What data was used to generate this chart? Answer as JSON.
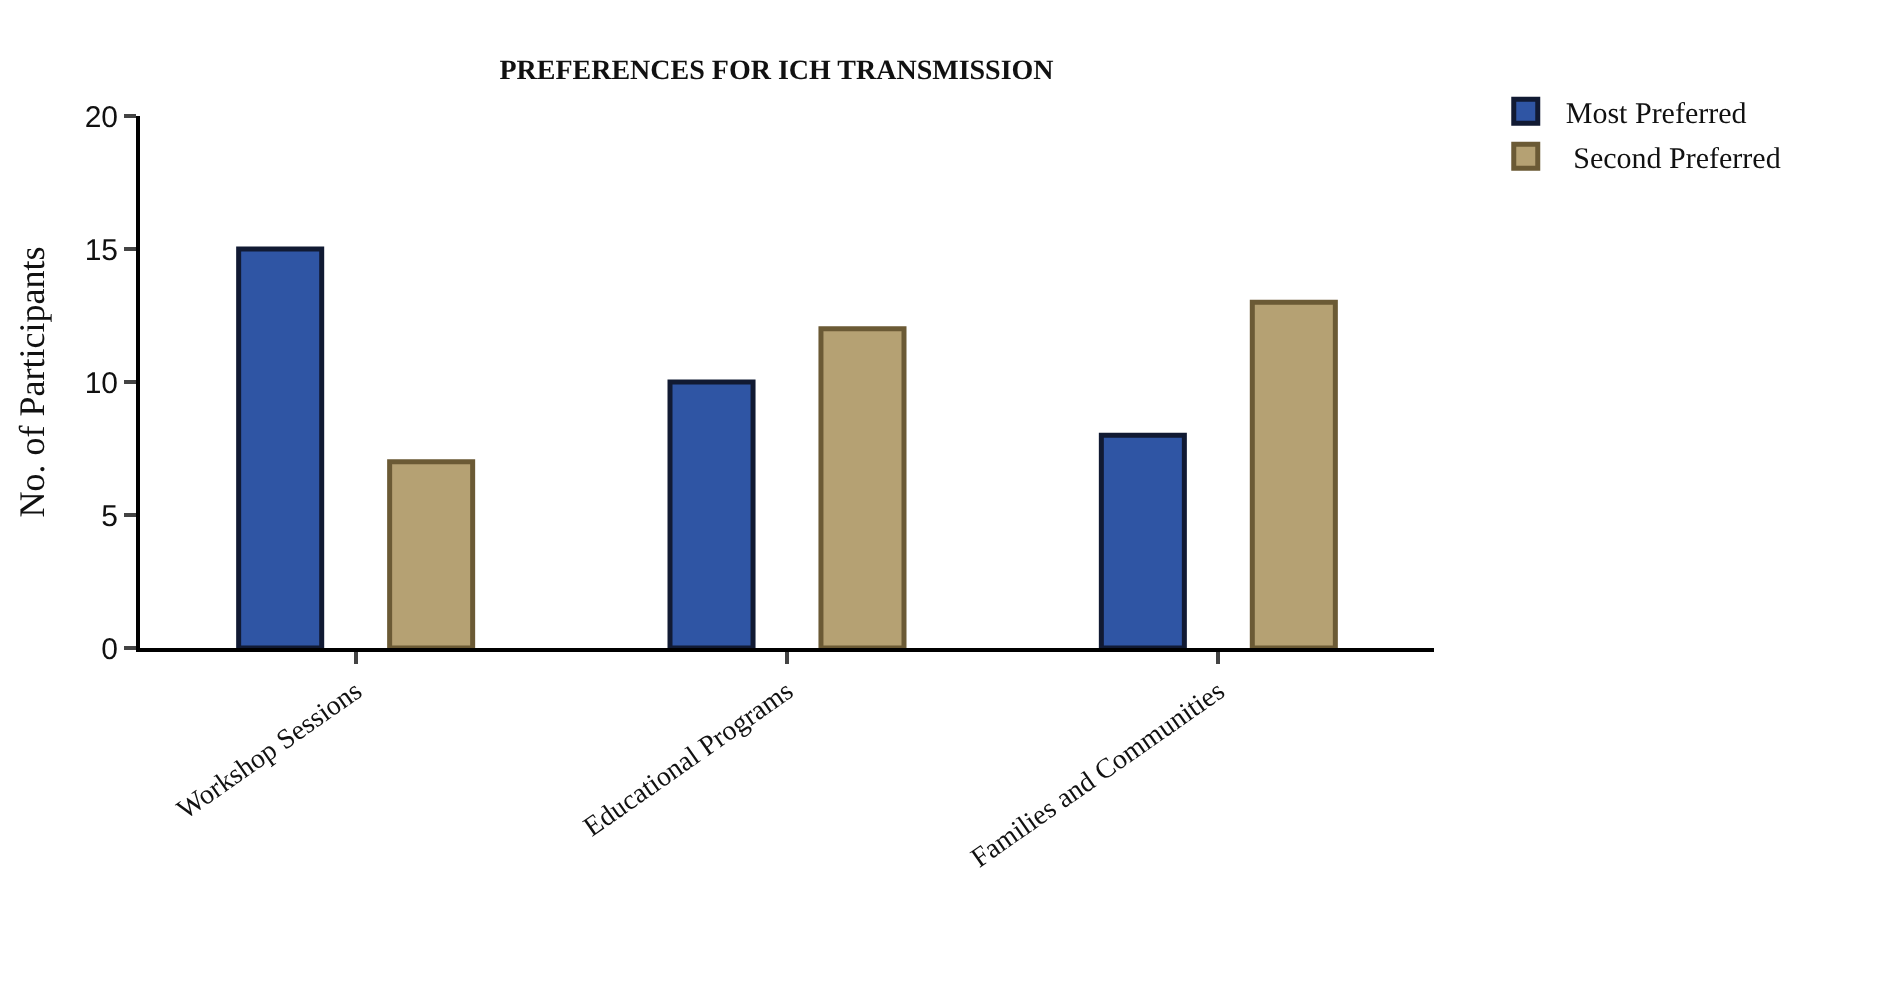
{
  "chart_data": {
    "type": "bar",
    "title": "PREFERENCES FOR ICH TRANSMISSION",
    "ylabel": "No. of Participants",
    "categories": [
      "Workshop Sessions",
      "Educational Programs",
      "Families and Communities"
    ],
    "series": [
      {
        "name": "Most Preferred",
        "color": "#2f55a4",
        "values": [
          15,
          10,
          8
        ]
      },
      {
        "name": " Second Preferred",
        "color": "#b5a173",
        "values": [
          7,
          12,
          13
        ]
      }
    ],
    "ylim": [
      0,
      20
    ],
    "yticks": [
      0,
      5,
      10,
      15,
      20
    ],
    "legend": "top right"
  }
}
